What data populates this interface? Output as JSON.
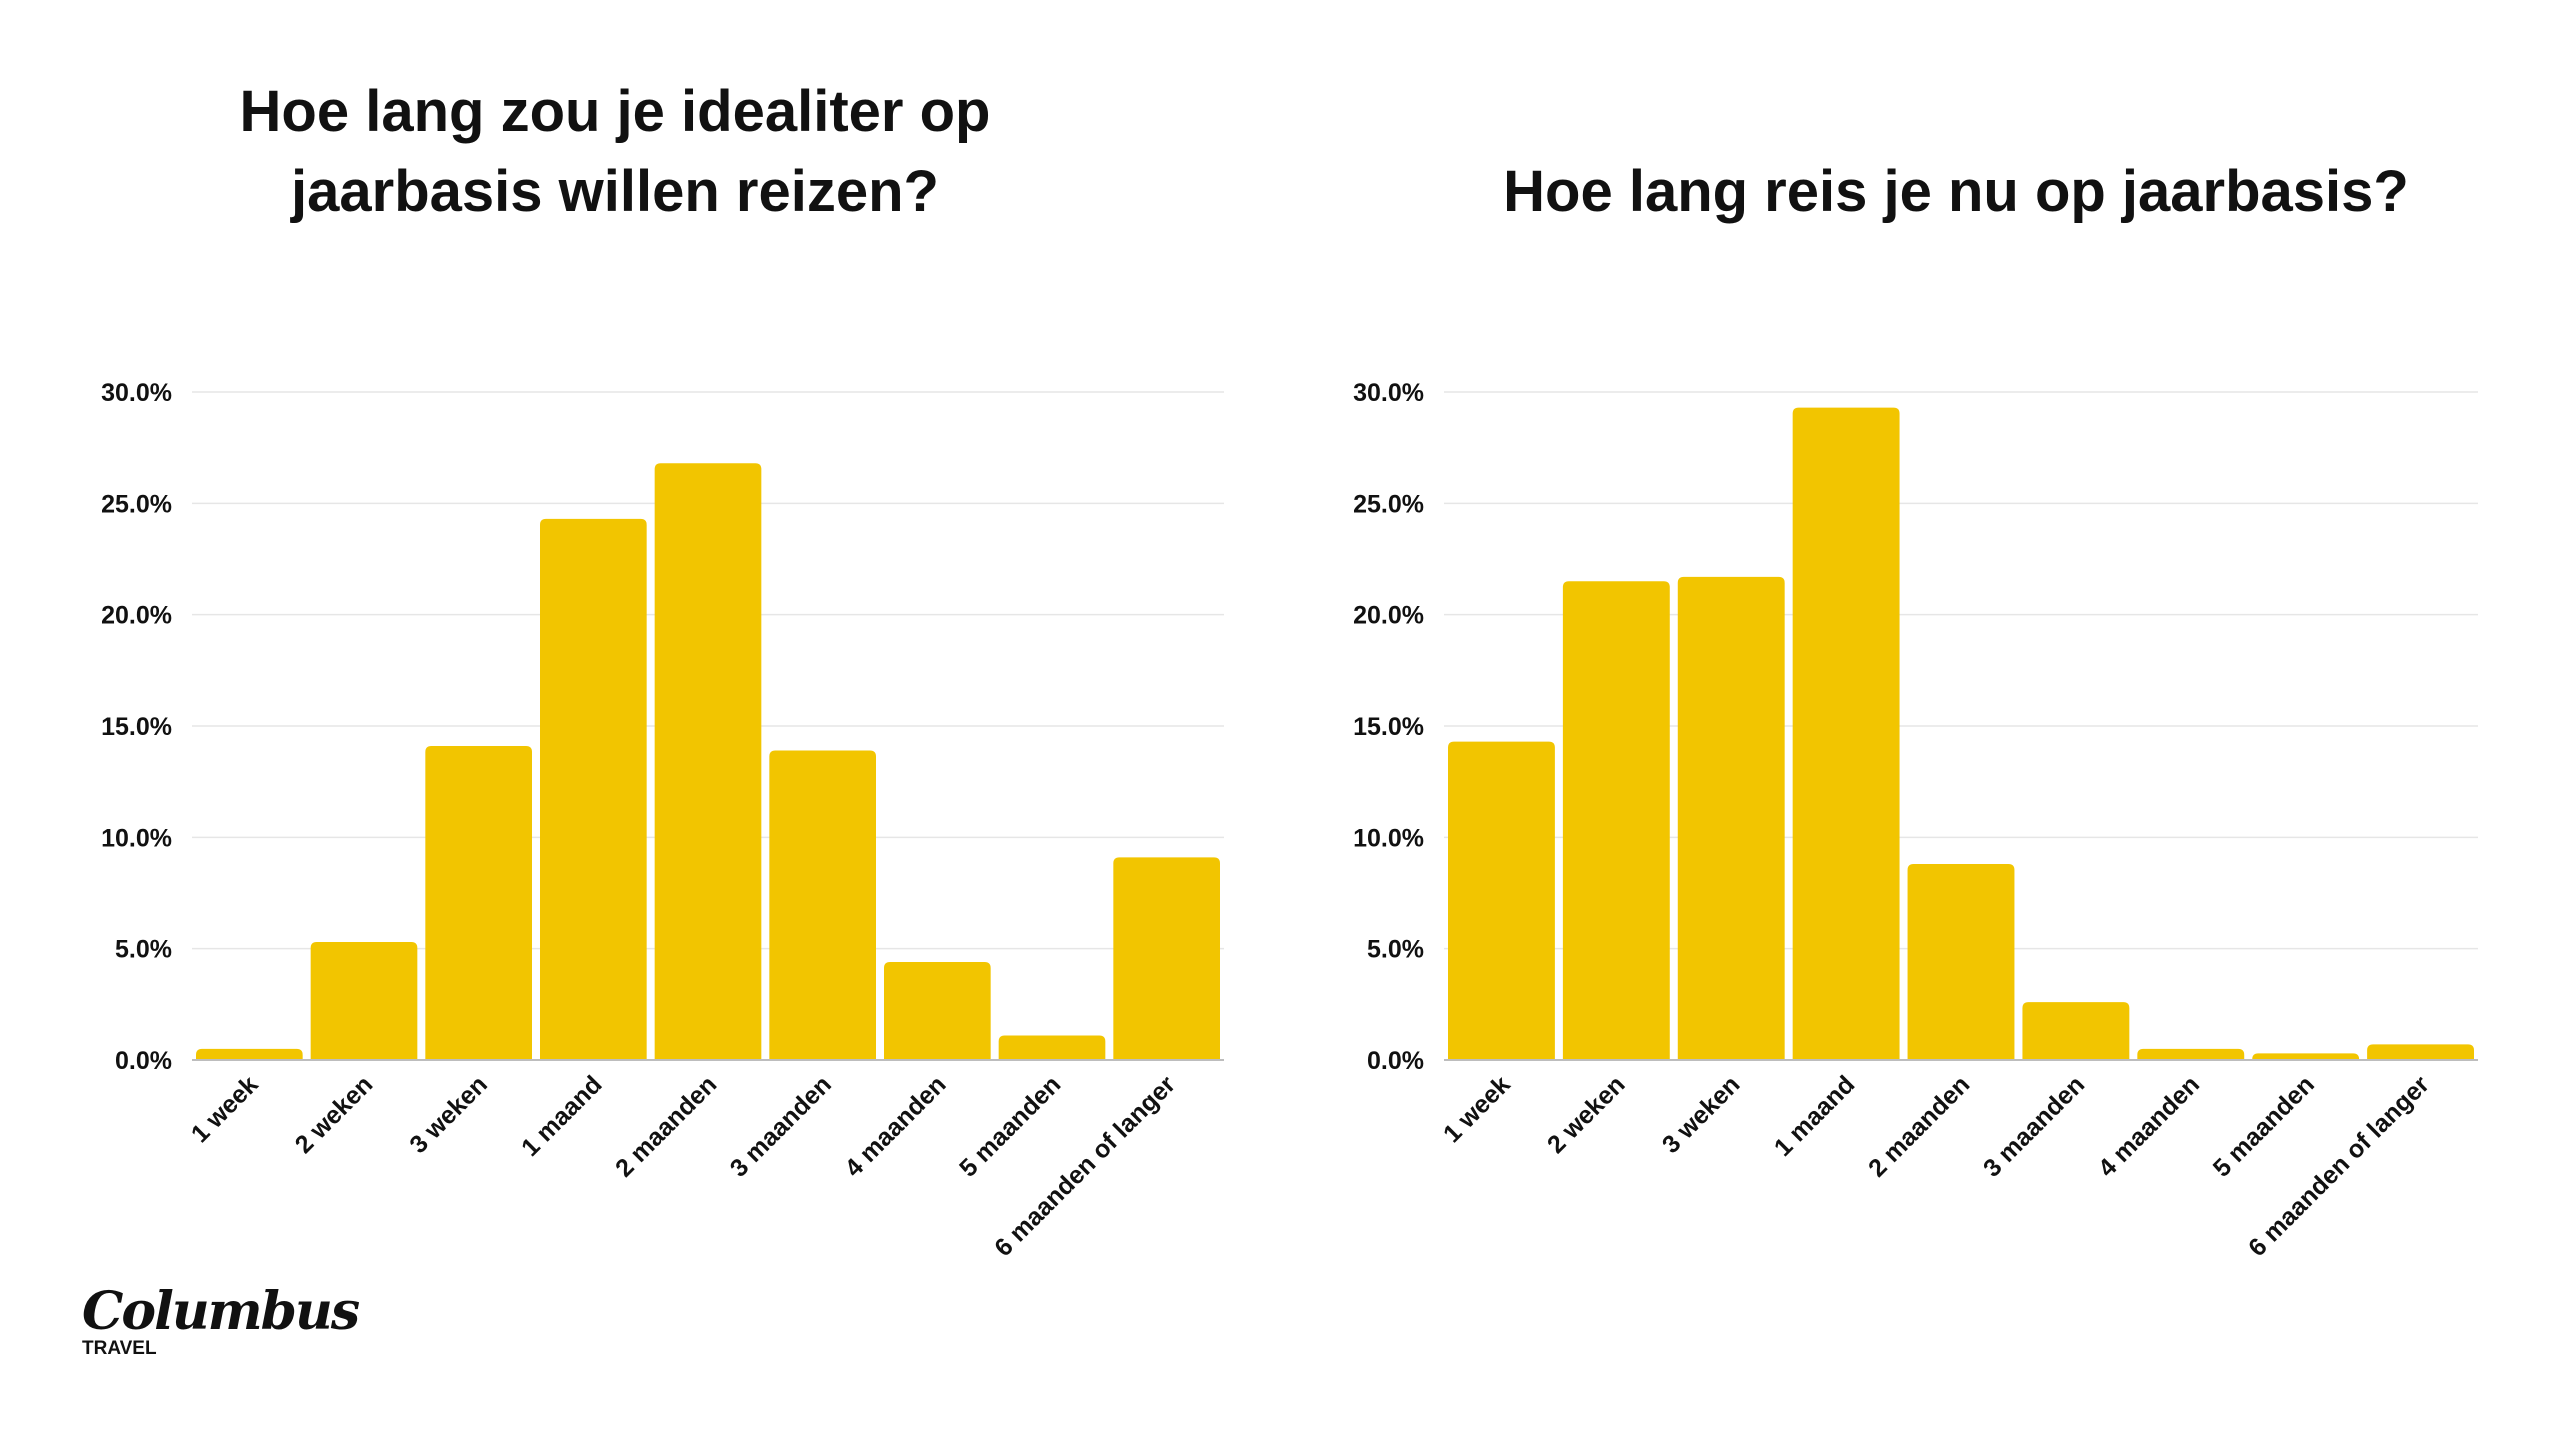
{
  "colors": {
    "bar": "#F2C500",
    "grid": "#E6E6E6",
    "axis": "#BDBDBD",
    "text": "#111111"
  },
  "logo": {
    "name": "Columbus",
    "sub": "TRAVEL"
  },
  "chart_data": [
    {
      "type": "bar",
      "title": "Hoe lang zou je idealiter op\njaarbasis willen reizen?",
      "categories": [
        "1 week",
        "2 weken",
        "3 weken",
        "1 maand",
        "2 maanden",
        "3 maanden",
        "4 maanden",
        "5 maanden",
        "6 maanden of langer"
      ],
      "values": [
        0.5,
        5.3,
        14.1,
        24.3,
        26.8,
        13.9,
        4.4,
        1.1,
        9.1
      ],
      "ylim": [
        0,
        30
      ],
      "yticks": [
        "0.0%",
        "5.0%",
        "10.0%",
        "15.0%",
        "20.0%",
        "25.0%",
        "30.0%"
      ],
      "xlabel": "",
      "ylabel": "",
      "grid": true
    },
    {
      "type": "bar",
      "title": "Hoe lang reis je nu op jaarbasis?",
      "categories": [
        "1 week",
        "2 weken",
        "3 weken",
        "1 maand",
        "2 maanden",
        "3 maanden",
        "4 maanden",
        "5 maanden",
        "6 maanden of langer"
      ],
      "values": [
        14.3,
        21.5,
        21.7,
        29.3,
        8.8,
        2.6,
        0.5,
        0.3,
        0.7
      ],
      "ylim": [
        0,
        30
      ],
      "yticks": [
        "0.0%",
        "5.0%",
        "10.0%",
        "15.0%",
        "20.0%",
        "25.0%",
        "30.0%"
      ],
      "xlabel": "",
      "ylabel": "",
      "grid": true
    }
  ]
}
